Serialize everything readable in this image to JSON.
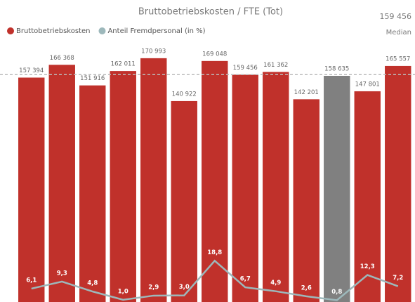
{
  "chart_data": {
    "type": "bar",
    "title": "Bruttobetriebskosten / FTE (Tot)",
    "series": [
      {
        "name": "Bruttobetriebskosten",
        "type": "bar",
        "color": "#c0312b",
        "colors": [
          "#c0312b",
          "#c0312b",
          "#c0312b",
          "#c0312b",
          "#c0312b",
          "#c0312b",
          "#c0312b",
          "#c0312b",
          "#c0312b",
          "#c0312b",
          "#808080",
          "#c0312b",
          "#c0312b"
        ],
        "values": [
          157394,
          166368,
          151916,
          162011,
          170993,
          140922,
          169048,
          159456,
          161362,
          142201,
          158635,
          147801,
          165557
        ],
        "value_labels": [
          "157 394",
          "166 368",
          "151 916",
          "162 011",
          "170 993",
          "140 922",
          "169 048",
          "159 456",
          "161 362",
          "142 201",
          "158 635",
          "147 801",
          "165 557"
        ]
      },
      {
        "name": "Anteil Fremdpersonal (in %)",
        "type": "line",
        "axis": "y2",
        "color": "#9db8bb",
        "values": [
          6.1,
          9.3,
          4.8,
          1.0,
          2.9,
          3.0,
          18.8,
          6.7,
          4.9,
          2.6,
          0.8,
          12.3,
          7.2
        ],
        "value_labels": [
          "6,1",
          "9,3",
          "4,8",
          "1,0",
          "2,9",
          "3,0",
          "18,8",
          "6,7",
          "4,9",
          "2,6",
          "0,8",
          "12,3",
          "7,2"
        ]
      }
    ],
    "median": {
      "value": 159456,
      "label": "159 456",
      "text": "Median"
    },
    "ylim": [
      0,
      180000
    ],
    "y2lim": [
      0,
      117
    ]
  }
}
